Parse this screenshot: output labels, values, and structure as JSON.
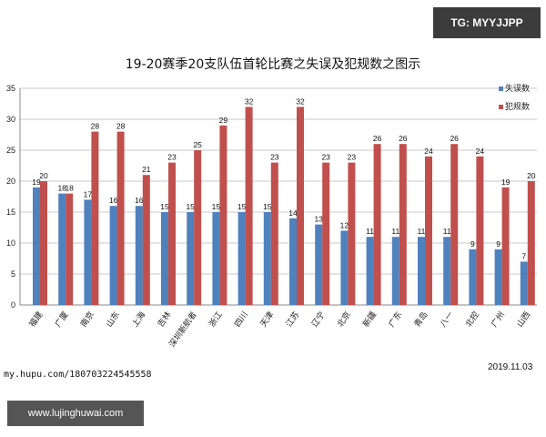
{
  "badge": "TG: MYYJJPP",
  "watermark": "www.lujinghuwai.com",
  "source": "my.hupu.com/180703224545558",
  "date": "2019.11.03",
  "colors": {
    "series1": "#4f81bd",
    "series2": "#c0504d"
  },
  "chart_data": {
    "type": "bar",
    "title": "19-20赛季20支队伍首轮比赛之失误及犯规数之图示",
    "xlabel": "",
    "ylabel": "",
    "ylim": [
      0,
      35
    ],
    "yticks": [
      0,
      5,
      10,
      15,
      20,
      25,
      30,
      35
    ],
    "grid": true,
    "legend": "top-right",
    "categories": [
      "福建",
      "广厦",
      "南京",
      "山东",
      "上海",
      "吉林",
      "深圳新航者",
      "浙江",
      "四川",
      "天津",
      "江苏",
      "辽宁",
      "北京",
      "新疆",
      "广东",
      "青岛",
      "八一",
      "北控",
      "广州",
      "山西"
    ],
    "series": [
      {
        "name": "失误数",
        "values": [
          19,
          18,
          17,
          16,
          16,
          15,
          15,
          15,
          15,
          15,
          14,
          13,
          12,
          11,
          11,
          11,
          11,
          9,
          9,
          7
        ]
      },
      {
        "name": "犯规数",
        "values": [
          20,
          18,
          28,
          28,
          21,
          23,
          25,
          29,
          32,
          23,
          32,
          23,
          23,
          26,
          26,
          24,
          26,
          24,
          19,
          20
        ]
      }
    ]
  }
}
